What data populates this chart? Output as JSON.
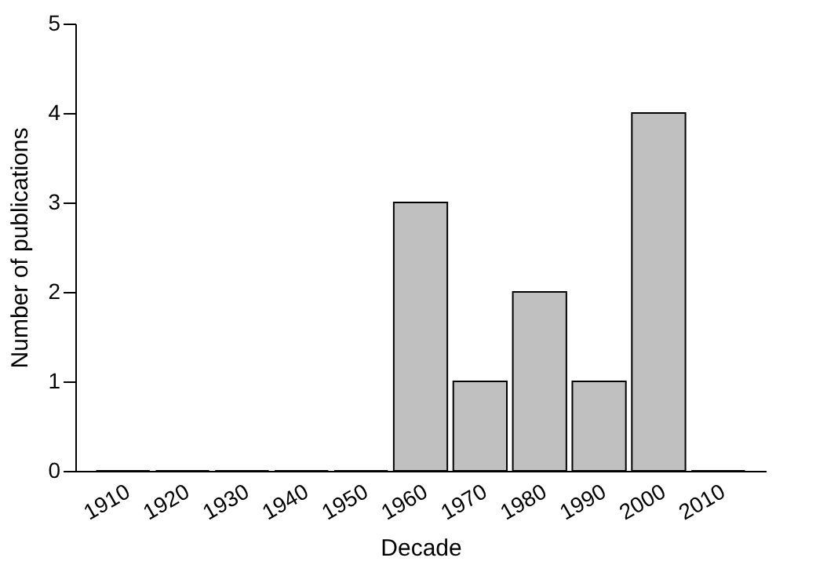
{
  "chart_data": {
    "type": "bar",
    "xlabel": "Decade",
    "ylabel": "Number of publications",
    "categories": [
      "1910",
      "1920",
      "1930",
      "1940",
      "1950",
      "1960",
      "1970",
      "1980",
      "1990",
      "2000",
      "2010"
    ],
    "values": [
      0,
      0,
      0,
      0,
      0,
      3,
      1,
      2,
      1,
      4,
      0
    ],
    "color": "#c0c0c0",
    "ylim": [
      0,
      5
    ],
    "yticks": [
      0,
      1,
      2,
      3,
      4,
      5
    ],
    "grid": false
  }
}
